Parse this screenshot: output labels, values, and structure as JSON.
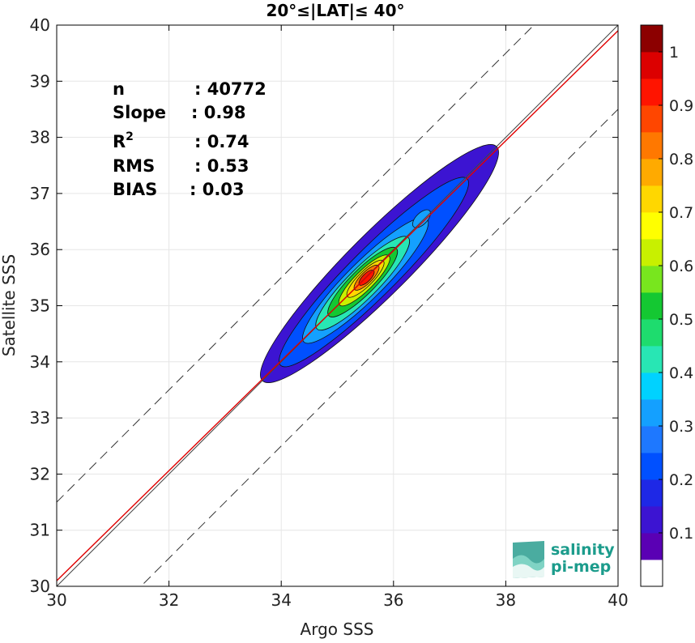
{
  "chart_data": {
    "type": "heatmap",
    "title": "20°≤|LAT|≤ 40°",
    "xlabel": "Argo SSS",
    "ylabel": "Satellite SSS",
    "xlim": [
      30,
      40
    ],
    "ylim": [
      30,
      40
    ],
    "x_ticks": [
      "30",
      "32",
      "34",
      "36",
      "38",
      "40"
    ],
    "y_ticks": [
      "30",
      "31",
      "32",
      "33",
      "34",
      "35",
      "36",
      "37",
      "38",
      "39",
      "40"
    ],
    "grid": true,
    "stats": [
      {
        "label": "n",
        "value": ": 40772"
      },
      {
        "label": "Slope",
        "value": ": 0.98"
      },
      {
        "label": "R",
        "sup": "2",
        "value": ": 0.74"
      },
      {
        "label": "RMS",
        "value": ": 0.53"
      },
      {
        "label": "BIAS",
        "value": ": 0.03"
      }
    ],
    "lines": {
      "identity": {
        "slope": 1,
        "intercept": 0,
        "color": "#444444"
      },
      "regression": {
        "slope": 0.98,
        "intercept": 0.7,
        "color": "#e00000"
      },
      "bounds_offset": 1.5
    },
    "density_peak": {
      "x": 35.5,
      "y": 35.5
    },
    "colorbar": {
      "ticks": [
        "0.1",
        "0.2",
        "0.3",
        "0.4",
        "0.5",
        "0.6",
        "0.7",
        "0.8",
        "0.9",
        "1"
      ],
      "colors": [
        "#ffffff",
        "#5a00b4",
        "#3c14d2",
        "#1e28e6",
        "#0050ff",
        "#1e78ff",
        "#14a0ff",
        "#00d2ff",
        "#28e6b4",
        "#1edc6e",
        "#14c832",
        "#78e61e",
        "#c8f000",
        "#ffff00",
        "#ffd700",
        "#ffaa00",
        "#ff7800",
        "#ff4600",
        "#ff1400",
        "#dc0000",
        "#8c0000"
      ]
    },
    "logo": {
      "line1": "salinity",
      "line2": "pi-mep"
    }
  }
}
